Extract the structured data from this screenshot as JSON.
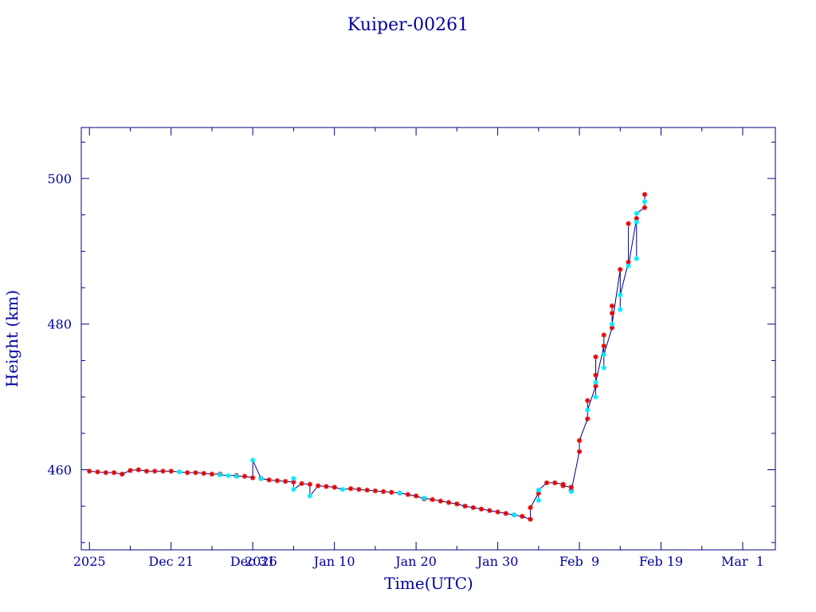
{
  "chart_data": {
    "type": "scatter",
    "title": "Kuiper-00261",
    "xlabel": "Time(UTC)",
    "ylabel": "Height (km)",
    "x_unit": "date",
    "xlim": [
      "2025-12-10",
      "2026-03-05"
    ],
    "ylim": [
      449,
      507
    ],
    "x_ticks": [
      {
        "label": "2025",
        "x": "2025-12-11"
      },
      {
        "label": "Dec 21",
        "x": "2025-12-21"
      },
      {
        "label": "Dec 31",
        "x": "2025-12-31"
      },
      {
        "label": "2026",
        "x": "2026-01-01"
      },
      {
        "label": "Jan 10",
        "x": "2026-01-10"
      },
      {
        "label": "Jan 20",
        "x": "2026-01-20"
      },
      {
        "label": "Jan 30",
        "x": "2026-01-30"
      },
      {
        "label": "Feb  9",
        "x": "2026-02-09"
      },
      {
        "label": "Feb 19",
        "x": "2026-02-19"
      },
      {
        "label": "Mar  1",
        "x": "2026-03-01"
      }
    ],
    "y_ticks": [
      460,
      480,
      500
    ],
    "grid": false,
    "colors": {
      "marker_primary": "#e00000",
      "marker_secondary": "#00e8ff",
      "line": "#000080",
      "text": "#0000a0"
    },
    "series": [
      {
        "marker": "red-star",
        "points": [
          [
            "2025-12-11",
            459.8
          ],
          [
            "2025-12-12",
            459.7
          ],
          [
            "2025-12-13",
            459.6
          ],
          [
            "2025-12-14",
            459.6
          ],
          [
            "2025-12-15",
            459.4
          ],
          [
            "2025-12-16",
            459.9
          ],
          [
            "2025-12-17",
            460.0
          ],
          [
            "2025-12-18",
            459.8
          ],
          [
            "2025-12-19",
            459.8
          ],
          [
            "2025-12-20",
            459.8
          ],
          [
            "2025-12-21",
            459.8
          ],
          [
            "2025-12-23",
            459.6
          ],
          [
            "2025-12-24",
            459.6
          ],
          [
            "2025-12-25",
            459.5
          ],
          [
            "2025-12-26",
            459.4
          ],
          [
            "2025-12-27",
            459.4
          ],
          [
            "2025-12-29",
            459.2
          ],
          [
            "2025-12-30",
            459.1
          ],
          [
            "2025-12-31",
            458.9
          ],
          [
            "2026-01-01",
            458.8
          ],
          [
            "2026-01-02",
            458.6
          ],
          [
            "2026-01-03",
            458.5
          ],
          [
            "2026-01-04",
            458.4
          ],
          [
            "2026-01-05",
            458.3
          ],
          [
            "2026-01-06",
            458.1
          ],
          [
            "2026-01-07",
            458.0
          ],
          [
            "2026-01-08",
            457.8
          ],
          [
            "2026-01-09",
            457.7
          ],
          [
            "2026-01-10",
            457.6
          ],
          [
            "2026-01-12",
            457.4
          ],
          [
            "2026-01-13",
            457.3
          ],
          [
            "2026-01-14",
            457.2
          ],
          [
            "2026-01-15",
            457.1
          ],
          [
            "2026-01-16",
            457.0
          ],
          [
            "2026-01-17",
            456.9
          ],
          [
            "2026-01-18",
            456.8
          ],
          [
            "2026-01-19",
            456.6
          ],
          [
            "2026-01-20",
            456.4
          ],
          [
            "2026-01-21",
            456.0
          ],
          [
            "2026-01-22",
            455.9
          ],
          [
            "2026-01-23",
            455.7
          ],
          [
            "2026-01-24",
            455.5
          ],
          [
            "2026-01-25",
            455.3
          ],
          [
            "2026-01-26",
            455.0
          ],
          [
            "2026-01-27",
            454.8
          ],
          [
            "2026-01-28",
            454.6
          ],
          [
            "2026-01-29",
            454.4
          ],
          [
            "2026-01-30",
            454.2
          ],
          [
            "2026-01-31",
            454.0
          ],
          [
            "2026-02-01",
            453.8
          ],
          [
            "2026-02-02",
            453.6
          ],
          [
            "2026-02-03",
            453.2
          ],
          [
            "2026-02-03",
            454.8
          ],
          [
            "2026-02-04",
            456.8
          ],
          [
            "2026-02-05",
            458.2
          ],
          [
            "2026-02-06",
            458.2
          ],
          [
            "2026-02-07",
            458.0
          ],
          [
            "2026-02-07",
            457.8
          ],
          [
            "2026-02-08",
            457.6
          ],
          [
            "2026-02-08",
            457.2
          ],
          [
            "2026-02-09",
            462.5
          ],
          [
            "2026-02-09",
            464.0
          ],
          [
            "2026-02-10",
            467.0
          ],
          [
            "2026-02-10",
            469.5
          ],
          [
            "2026-02-11",
            471.5
          ],
          [
            "2026-02-11",
            473.0
          ],
          [
            "2026-02-11",
            475.5
          ],
          [
            "2026-02-12",
            477.0
          ],
          [
            "2026-02-12",
            478.5
          ],
          [
            "2026-02-13",
            479.5
          ],
          [
            "2026-02-13",
            481.5
          ],
          [
            "2026-02-13",
            482.5
          ],
          [
            "2026-02-14",
            487.5
          ],
          [
            "2026-02-15",
            488.5
          ],
          [
            "2026-02-15",
            493.8
          ],
          [
            "2026-02-16",
            494.5
          ],
          [
            "2026-02-17",
            496.0
          ],
          [
            "2026-02-17",
            497.8
          ]
        ]
      },
      {
        "marker": "cyan-star",
        "points": [
          [
            "2025-12-22",
            459.7
          ],
          [
            "2025-12-27",
            459.3
          ],
          [
            "2025-12-28",
            459.2
          ],
          [
            "2025-12-29",
            459.1
          ],
          [
            "2025-12-31",
            461.3
          ],
          [
            "2026-01-01",
            458.8
          ],
          [
            "2026-01-05",
            458.8
          ],
          [
            "2026-01-05",
            457.3
          ],
          [
            "2026-01-07",
            456.4
          ],
          [
            "2026-01-11",
            457.3
          ],
          [
            "2026-01-18",
            456.8
          ],
          [
            "2026-01-21",
            456.1
          ],
          [
            "2026-02-01",
            453.8
          ],
          [
            "2026-02-04",
            455.8
          ],
          [
            "2026-02-04",
            457.2
          ],
          [
            "2026-02-08",
            457.0
          ],
          [
            "2026-02-10",
            468.2
          ],
          [
            "2026-02-11",
            470.0
          ],
          [
            "2026-02-11",
            472.0
          ],
          [
            "2026-02-12",
            474.0
          ],
          [
            "2026-02-12",
            475.8
          ],
          [
            "2026-02-13",
            480.0
          ],
          [
            "2026-02-14",
            482.0
          ],
          [
            "2026-02-14",
            484.0
          ],
          [
            "2026-02-15",
            488.0
          ],
          [
            "2026-02-16",
            489.0
          ],
          [
            "2026-02-16",
            494.0
          ],
          [
            "2026-02-16",
            495.2
          ],
          [
            "2026-02-17",
            496.8
          ]
        ]
      }
    ]
  }
}
